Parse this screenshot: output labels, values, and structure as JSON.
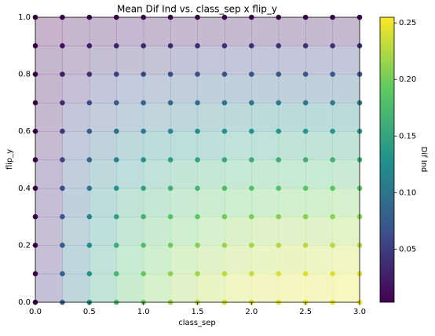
{
  "chart_data": {
    "type": "scatter",
    "title": "Mean Dif Ind vs. class_sep x flip_y",
    "xlabel": "class_sep",
    "ylabel": "flip_y",
    "colorbar_label": "Dif Ind",
    "colormap": "viridis",
    "x": [
      0,
      0.25,
      0.5,
      0.75,
      1,
      1.25,
      1.5,
      1.75,
      2,
      2.25,
      2.5,
      2.75,
      3
    ],
    "y": [
      0,
      0.1,
      0.2,
      0.3,
      0.4,
      0.5,
      0.6,
      0.7,
      0.8,
      0.9,
      1
    ],
    "values": [
      [
        0.003,
        0.081,
        0.136,
        0.173,
        0.198,
        0.216,
        0.226,
        0.236,
        0.241,
        0.246,
        0.248,
        0.248,
        0.251
      ],
      [
        0.003,
        0.079,
        0.132,
        0.168,
        0.192,
        0.21,
        0.219,
        0.229,
        0.234,
        0.239,
        0.241,
        0.241,
        0.244
      ],
      [
        0.003,
        0.074,
        0.124,
        0.158,
        0.18,
        0.197,
        0.206,
        0.215,
        0.22,
        0.224,
        0.226,
        0.226,
        0.229
      ],
      [
        0.003,
        0.069,
        0.115,
        0.146,
        0.167,
        0.182,
        0.19,
        0.199,
        0.203,
        0.207,
        0.209,
        0.209,
        0.211
      ],
      [
        0.003,
        0.062,
        0.103,
        0.131,
        0.149,
        0.163,
        0.17,
        0.178,
        0.182,
        0.185,
        0.187,
        0.187,
        0.189
      ],
      [
        0.003,
        0.054,
        0.089,
        0.114,
        0.13,
        0.141,
        0.148,
        0.154,
        0.158,
        0.161,
        0.162,
        0.162,
        0.164
      ],
      [
        0.003,
        0.045,
        0.075,
        0.095,
        0.108,
        0.118,
        0.123,
        0.129,
        0.132,
        0.134,
        0.135,
        0.135,
        0.137
      ],
      [
        0.003,
        0.035,
        0.058,
        0.073,
        0.083,
        0.09,
        0.094,
        0.099,
        0.101,
        0.103,
        0.103,
        0.103,
        0.105
      ],
      [
        0.003,
        0.025,
        0.04,
        0.051,
        0.058,
        0.063,
        0.065,
        0.068,
        0.07,
        0.071,
        0.072,
        0.072,
        0.072
      ],
      [
        0.003,
        0.015,
        0.023,
        0.029,
        0.032,
        0.035,
        0.036,
        0.038,
        0.039,
        0.039,
        0.04,
        0.04,
        0.04
      ],
      [
        0.003,
        0.005,
        0.006,
        0.006,
        0.007,
        0.007,
        0.007,
        0.008,
        0.008,
        0.008,
        0.008,
        0.008,
        0.008
      ]
    ],
    "xlim": [
      0,
      3
    ],
    "ylim": [
      0,
      1
    ],
    "xticks": [
      {
        "value": 0,
        "label": "0.0"
      },
      0.5,
      {
        "value": 1,
        "label": "1.0"
      },
      1.5,
      {
        "value": 2,
        "label": "2.0"
      },
      2.5,
      {
        "value": 3,
        "label": "3.0"
      }
    ],
    "yticks": [
      {
        "value": 0,
        "label": "0.0"
      },
      0.2,
      0.4,
      0.6,
      0.8,
      {
        "value": 1,
        "label": "1.0"
      }
    ],
    "clim": [
      0.003,
      0.255
    ],
    "cticks": [
      0.05,
      {
        "value": 0.1,
        "label": "0.10"
      },
      0.15,
      {
        "value": 0.2,
        "label": "0.20"
      },
      0.25
    ]
  }
}
